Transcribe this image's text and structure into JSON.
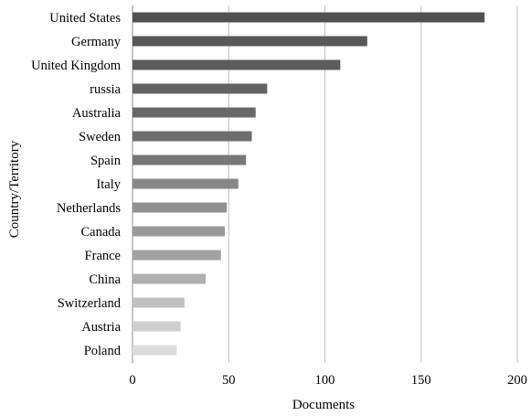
{
  "chart_data": {
    "type": "bar",
    "orientation": "horizontal",
    "title": "",
    "xlabel": "Documents",
    "ylabel": "Country/Territory",
    "xlim": [
      0,
      200
    ],
    "xticks": [
      0,
      50,
      100,
      150,
      200
    ],
    "grid": "vertical",
    "legend": "none",
    "categories": [
      "United States",
      "Germany",
      "United Kingdom",
      "russia",
      "Australia",
      "Sweden",
      "Spain",
      "Italy",
      "Netherlands",
      "Canada",
      "France",
      "China",
      "Switzerland",
      "Austria",
      "Poland"
    ],
    "values": [
      183,
      122,
      108,
      70,
      64,
      62,
      59,
      55,
      49,
      48,
      46,
      38,
      27,
      25,
      23
    ],
    "bar_colors": [
      "#505050",
      "#585858",
      "#5c5c5c",
      "#636363",
      "#686868",
      "#6e6e6e",
      "#787878",
      "#878787",
      "#909090",
      "#999999",
      "#a2a2a2",
      "#b0b0b0",
      "#c0c0c0",
      "#cfcfcf",
      "#dcdcdc"
    ],
    "grid_color": "#bfbfbf"
  }
}
